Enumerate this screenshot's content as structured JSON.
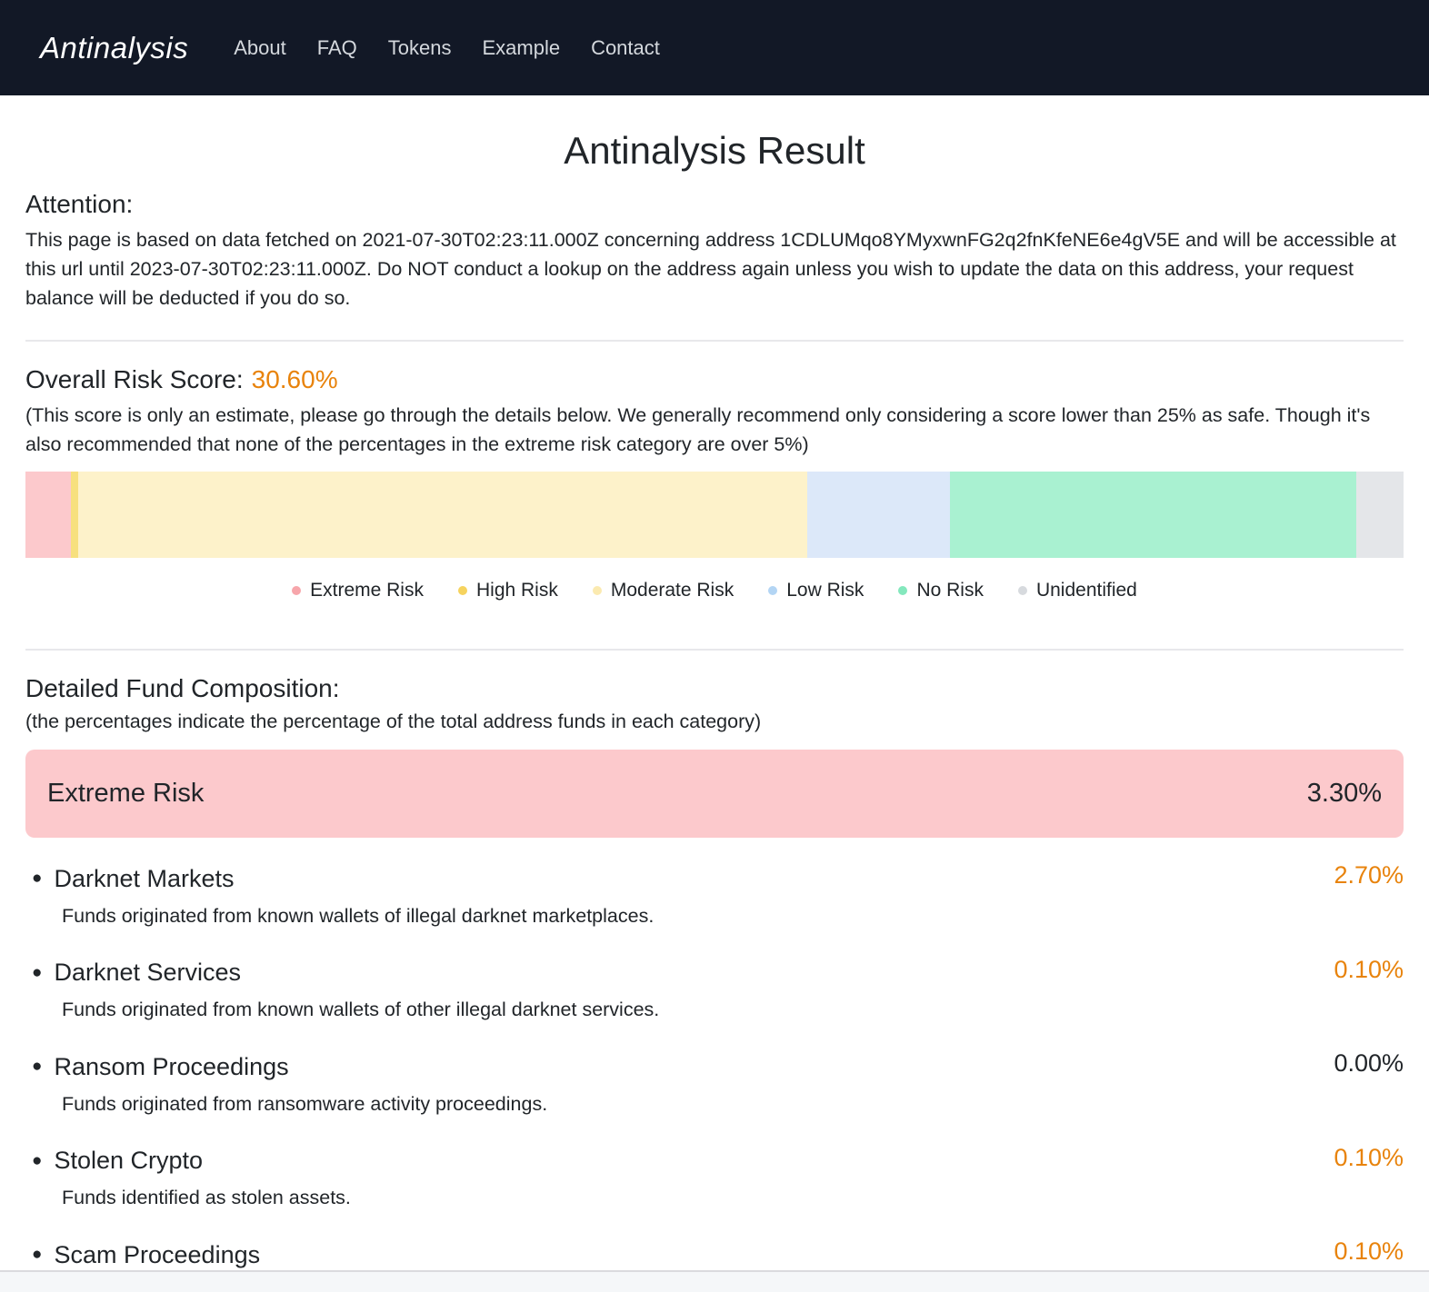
{
  "navbar": {
    "brand": "Antinalysis",
    "links": [
      {
        "label": "About"
      },
      {
        "label": "FAQ"
      },
      {
        "label": "Tokens"
      },
      {
        "label": "Example"
      },
      {
        "label": "Contact"
      }
    ]
  },
  "page": {
    "title": "Antinalysis Result"
  },
  "attention": {
    "heading": "Attention:",
    "body": "This page is based on data fetched on 2021-07-30T02:23:11.000Z concerning address 1CDLUMqo8YMyxwnFG2q2fnKfeNE6e4gV5E and will be accessible at this url until 2023-07-30T02:23:11.000Z. Do NOT conduct a lookup on the address again unless you wish to update the data on this address, your request balance will be deducted if you do so."
  },
  "risk_score": {
    "label": "Overall Risk Score:",
    "value": "30.60%",
    "accent_color": "#e8830c",
    "note": "(This score is only an estimate, please go through the details below. We generally recommend only considering a score lower than 25% as safe. Though it's also recommended that none of the percentages in the extreme risk category are over 5%)"
  },
  "risk_bar": {
    "segments": [
      {
        "name": "Extreme Risk",
        "percent": 3.3,
        "color": "#fcc9cc"
      },
      {
        "name": "High Risk",
        "percent": 0.5,
        "color": "#f7e07e"
      },
      {
        "name": "Moderate Risk",
        "percent": 52.9,
        "color": "#fdf2ca"
      },
      {
        "name": "Low Risk",
        "percent": 10.4,
        "color": "#dce8f9"
      },
      {
        "name": "No Risk",
        "percent": 29.5,
        "color": "#a9f1d1"
      },
      {
        "name": "Unidentified",
        "percent": 3.4,
        "color": "#e4e6e9"
      }
    ]
  },
  "legend": {
    "items": [
      {
        "label": "Extreme Risk",
        "color": "#f7a6ab"
      },
      {
        "label": "High Risk",
        "color": "#f6d35e"
      },
      {
        "label": "Moderate Risk",
        "color": "#fbeab0"
      },
      {
        "label": "Low Risk",
        "color": "#b3d5f4"
      },
      {
        "label": "No Risk",
        "color": "#84e8bd"
      },
      {
        "label": "Unidentified",
        "color": "#d7dade"
      }
    ]
  },
  "composition": {
    "heading": "Detailed Fund Composition:",
    "subheading": "(the percentages indicate the percentage of the total address funds in each category)",
    "banner": {
      "label": "Extreme Risk",
      "value": "3.30%",
      "color": "#fcc9cc",
      "text_color": "#212529"
    },
    "items": [
      {
        "name": "Darknet Markets",
        "value": "2.70%",
        "value_color": "#e8830c",
        "description": "Funds originated from known wallets of illegal darknet marketplaces."
      },
      {
        "name": "Darknet Services",
        "value": "0.10%",
        "value_color": "#e8830c",
        "description": "Funds originated from known wallets of other illegal darknet services."
      },
      {
        "name": "Ransom Proceedings",
        "value": "0.00%",
        "value_color": "#212529",
        "description": "Funds originated from ransomware activity proceedings."
      },
      {
        "name": "Stolen Crypto",
        "value": "0.10%",
        "value_color": "#e8830c",
        "description": "Funds identified as stolen assets."
      },
      {
        "name": "Scam Proceedings",
        "value": "0.10%",
        "value_color": "#e8830c",
        "description": ""
      }
    ]
  }
}
